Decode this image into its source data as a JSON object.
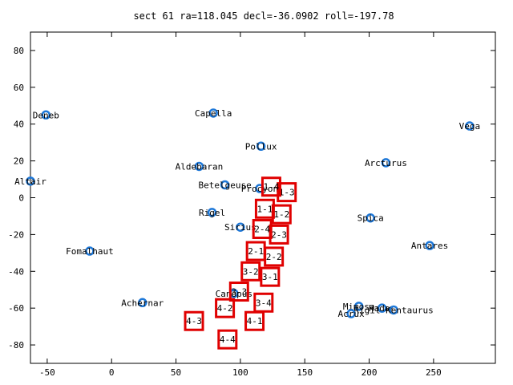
{
  "chart_data": {
    "type": "scatter",
    "title": "sect 61 ra=118.045 decl=-36.0902 roll=-197.78",
    "xlabel": "",
    "ylabel": "",
    "xlim": [
      -63,
      298
    ],
    "ylim": [
      -90,
      90
    ],
    "xticks": [
      -50,
      0,
      50,
      100,
      150,
      200,
      250
    ],
    "yticks": [
      -80,
      -60,
      -40,
      -20,
      0,
      20,
      40,
      60,
      80
    ],
    "grid": false,
    "star_color": "#1e78d8",
    "sector_color": "#e00000",
    "stars": [
      {
        "name": "Deneb",
        "x": -51,
        "y": 45
      },
      {
        "name": "Capella",
        "x": 79,
        "y": 46
      },
      {
        "name": "Vega",
        "x": 278,
        "y": 39
      },
      {
        "name": "Pollux",
        "x": 116,
        "y": 28
      },
      {
        "name": "Arcturus",
        "x": 213,
        "y": 19
      },
      {
        "name": "Aldebaran",
        "x": 68,
        "y": 17
      },
      {
        "name": "Altair",
        "x": -63,
        "y": 9
      },
      {
        "name": "Betelgeuse",
        "x": 88,
        "y": 7
      },
      {
        "name": "Procyon",
        "x": 115,
        "y": 5
      },
      {
        "name": "Rigel",
        "x": 78,
        "y": -8
      },
      {
        "name": "Spica",
        "x": 201,
        "y": -11
      },
      {
        "name": "Sirius",
        "x": 100,
        "y": -16
      },
      {
        "name": "Antares",
        "x": 247,
        "y": -26
      },
      {
        "name": "Fomalhaut",
        "x": -17,
        "y": -29
      },
      {
        "name": "Canopus",
        "x": 95,
        "y": -52
      },
      {
        "name": "Achernar",
        "x": 24,
        "y": -57
      },
      {
        "name": "Mimosa",
        "x": 192,
        "y": -59
      },
      {
        "name": "Hadar",
        "x": 210,
        "y": -60
      },
      {
        "name": "Rigil Kentaurus",
        "x": 219,
        "y": -61
      },
      {
        "name": "Acrux",
        "x": 186,
        "y": -63
      }
    ],
    "sectors": [
      {
        "label": "1-1",
        "x": 119,
        "y": -6
      },
      {
        "label": "1-2",
        "x": 132,
        "y": -9
      },
      {
        "label": "1-3",
        "x": 136,
        "y": 3
      },
      {
        "label": "1-4",
        "x": 124,
        "y": 6
      },
      {
        "label": "2-1",
        "x": 112,
        "y": -29
      },
      {
        "label": "2-2",
        "x": 126,
        "y": -32
      },
      {
        "label": "2-3",
        "x": 130,
        "y": -20
      },
      {
        "label": "2-4",
        "x": 117,
        "y": -17
      },
      {
        "label": "3-1",
        "x": 123,
        "y": -43
      },
      {
        "label": "3-2",
        "x": 108,
        "y": -40
      },
      {
        "label": "3-3",
        "x": 99,
        "y": -51
      },
      {
        "label": "3-4",
        "x": 118,
        "y": -57
      },
      {
        "label": "4-1",
        "x": 111,
        "y": -67
      },
      {
        "label": "4-2",
        "x": 88,
        "y": -60
      },
      {
        "label": "4-3",
        "x": 64,
        "y": -67
      },
      {
        "label": "4-4",
        "x": 90,
        "y": -77
      }
    ]
  }
}
